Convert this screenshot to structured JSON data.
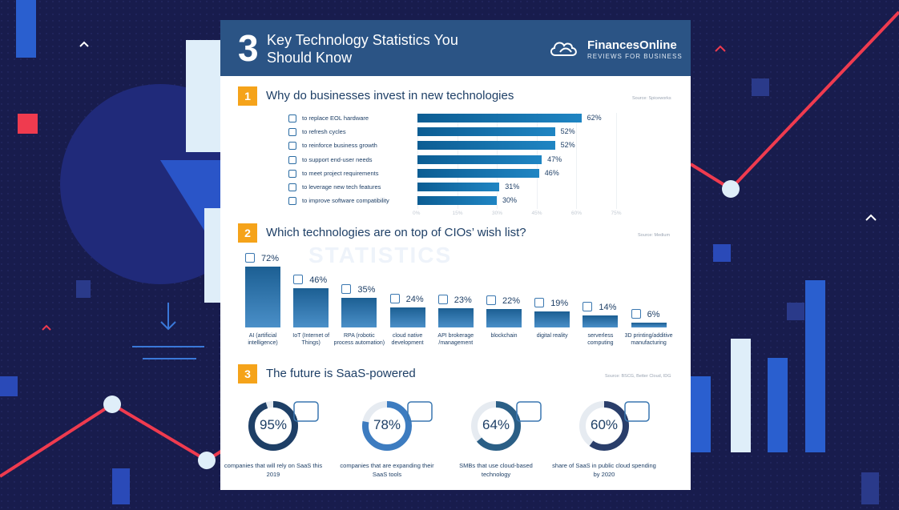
{
  "header": {
    "big_number": "3",
    "title": "Key Technology Statistics You Should Know",
    "brand_name": "FinancesOnline",
    "brand_tagline": "REVIEWS FOR BUSINESS"
  },
  "watermark": "STATISTICS",
  "sections": [
    {
      "number": "1",
      "title": "Why do businesses invest in new technologies",
      "source": "Source: Spiceworks"
    },
    {
      "number": "2",
      "title": "Which technologies are on top of CIOs’ wish list?",
      "source": "Source: Medium"
    },
    {
      "number": "3",
      "title": "The future is SaaS-powered",
      "source": "Source: BSCG, Better Cloud, IDG"
    }
  ],
  "chart_data": [
    {
      "type": "bar",
      "orientation": "horizontal",
      "title": "Why do businesses invest in new technologies",
      "categories": [
        "to replace EOL hardware",
        "to refresh cycles",
        "to reinforce business growth",
        "to support end-user needs",
        "to meet project requirements",
        "to leverage new tech features",
        "to improve software compatibility"
      ],
      "values": [
        62,
        52,
        52,
        47,
        46,
        31,
        30
      ],
      "value_labels": [
        "62%",
        "52%",
        "52%",
        "47%",
        "46%",
        "31%",
        "30%"
      ],
      "icons": [
        "server-icon",
        "refresh-icon",
        "growth-chart-icon",
        "user-support-icon",
        "checklist-icon",
        "new-feature-icon",
        "software-window-icon"
      ],
      "xlim": [
        0,
        75
      ],
      "tick_labels": [
        "0%",
        "15%",
        "30%",
        "45%",
        "60%",
        "75%"
      ],
      "ticks": [
        0,
        15,
        30,
        45,
        60,
        75
      ],
      "grid": true,
      "bar_color": "#1577b3"
    },
    {
      "type": "bar",
      "orientation": "vertical",
      "title": "Which technologies are on top of CIOs’ wish list?",
      "categories": [
        "AI (artificial intelligence)",
        "IoT (Internet of Things)",
        "RPA (robotic process automation)",
        "cloud native development",
        "API brokerage /management",
        "blockchain",
        "digital reality",
        "serverless computing",
        "3D printing/additive manufacturing"
      ],
      "values": [
        72,
        46,
        35,
        24,
        23,
        22,
        19,
        14,
        6
      ],
      "value_labels": [
        "72%",
        "46%",
        "35%",
        "24%",
        "23%",
        "22%",
        "19%",
        "14%",
        "6%"
      ],
      "icons": [
        "brain-icon",
        "iot-chip-icon",
        "robot-arm-icon",
        "cloud-icon",
        "api-icon",
        "blockchain-icon",
        "vr-headset-icon",
        "cloud-server-icon",
        "3d-printer-icon"
      ],
      "ylim": [
        0,
        72
      ],
      "bar_color_top": "#1c5f93",
      "bar_color_bottom": "#4a8fc8"
    },
    {
      "type": "pie",
      "title": "The future is SaaS-powered",
      "categories": [
        "companies that will rely on SaaS this 2019",
        "companies that are expanding their SaaS tools",
        "SMBs that use cloud-based technology",
        "share of SaaS in public cloud spending by 2020"
      ],
      "values": [
        95,
        78,
        64,
        60
      ],
      "value_labels": [
        "95%",
        "78%",
        "64%",
        "60%"
      ],
      "icons": [
        "cloud-gear-icon",
        "data-transfer-icon",
        "monitor-dashboard-icon",
        "money-growth-icon"
      ],
      "ring_colors": [
        "#1e3f66",
        "#3d7cc0",
        "#2b5f86",
        "#2a3e6a"
      ],
      "track_color": "#e6ebf1"
    }
  ],
  "colors": {
    "background": "#181c4d",
    "header": "#2b5485",
    "accent_orange": "#f5a31a",
    "accent_red": "#ef3b4f",
    "text_navy": "#1e3f66"
  }
}
